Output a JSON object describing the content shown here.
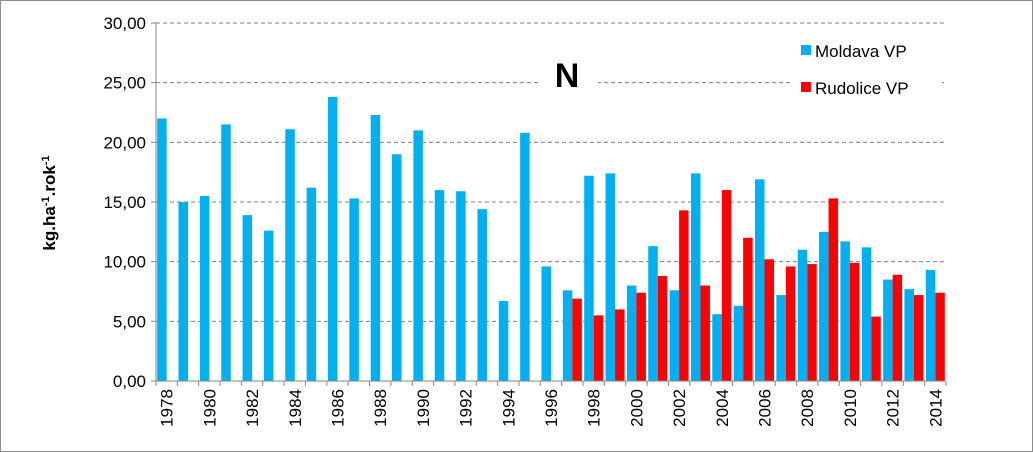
{
  "chart_data": {
    "type": "bar",
    "title": "N",
    "ylabel": "kg.ha-1.rok-1",
    "ylabel_parts": [
      "kg.ha",
      "-1",
      ".rok",
      "-1"
    ],
    "ylim": [
      0,
      30
    ],
    "yticks": [
      "0,00",
      "5,00",
      "10,00",
      "15,00",
      "20,00",
      "25,00",
      "30,00"
    ],
    "ytick_values": [
      0,
      5,
      10,
      15,
      20,
      25,
      30
    ],
    "grid": true,
    "legend_position": "top-right",
    "categories": [
      1978,
      1979,
      1980,
      1981,
      1982,
      1983,
      1984,
      1985,
      1986,
      1987,
      1988,
      1989,
      1990,
      1991,
      1992,
      1993,
      1994,
      1995,
      1996,
      1997,
      1998,
      1999,
      2000,
      2001,
      2002,
      2003,
      2004,
      2005,
      2006,
      2007,
      2008,
      2009,
      2010,
      2011,
      2012,
      2013,
      2014
    ],
    "xtick_labels": [
      "1978",
      "1980",
      "1982",
      "1984",
      "1986",
      "1988",
      "1990",
      "1992",
      "1994",
      "1996",
      "1998",
      "2000",
      "2002",
      "2004",
      "2006",
      "2008",
      "2010",
      "2012",
      "2014"
    ],
    "series": [
      {
        "name": "Moldava VP",
        "color": "#00b0f0",
        "values": [
          22.0,
          15.0,
          15.5,
          21.5,
          13.9,
          12.6,
          21.1,
          16.2,
          23.8,
          15.3,
          22.3,
          19.0,
          21.0,
          16.0,
          15.9,
          14.4,
          6.7,
          20.8,
          9.6,
          7.6,
          17.2,
          17.4,
          8.0,
          11.3,
          7.6,
          17.4,
          5.6,
          6.3,
          16.9,
          7.2,
          11.0,
          12.5,
          11.7,
          11.2,
          8.5,
          7.7,
          9.3
        ]
      },
      {
        "name": "Rudolice VP",
        "color": "#ff0000",
        "values": [
          null,
          null,
          null,
          null,
          null,
          null,
          null,
          null,
          null,
          null,
          null,
          null,
          null,
          null,
          null,
          null,
          null,
          null,
          null,
          6.9,
          5.5,
          6.0,
          7.4,
          8.8,
          14.3,
          8.0,
          16.0,
          12.0,
          10.2,
          9.6,
          9.8,
          15.3,
          9.9,
          5.4,
          8.9,
          7.2,
          7.4
        ]
      }
    ]
  }
}
